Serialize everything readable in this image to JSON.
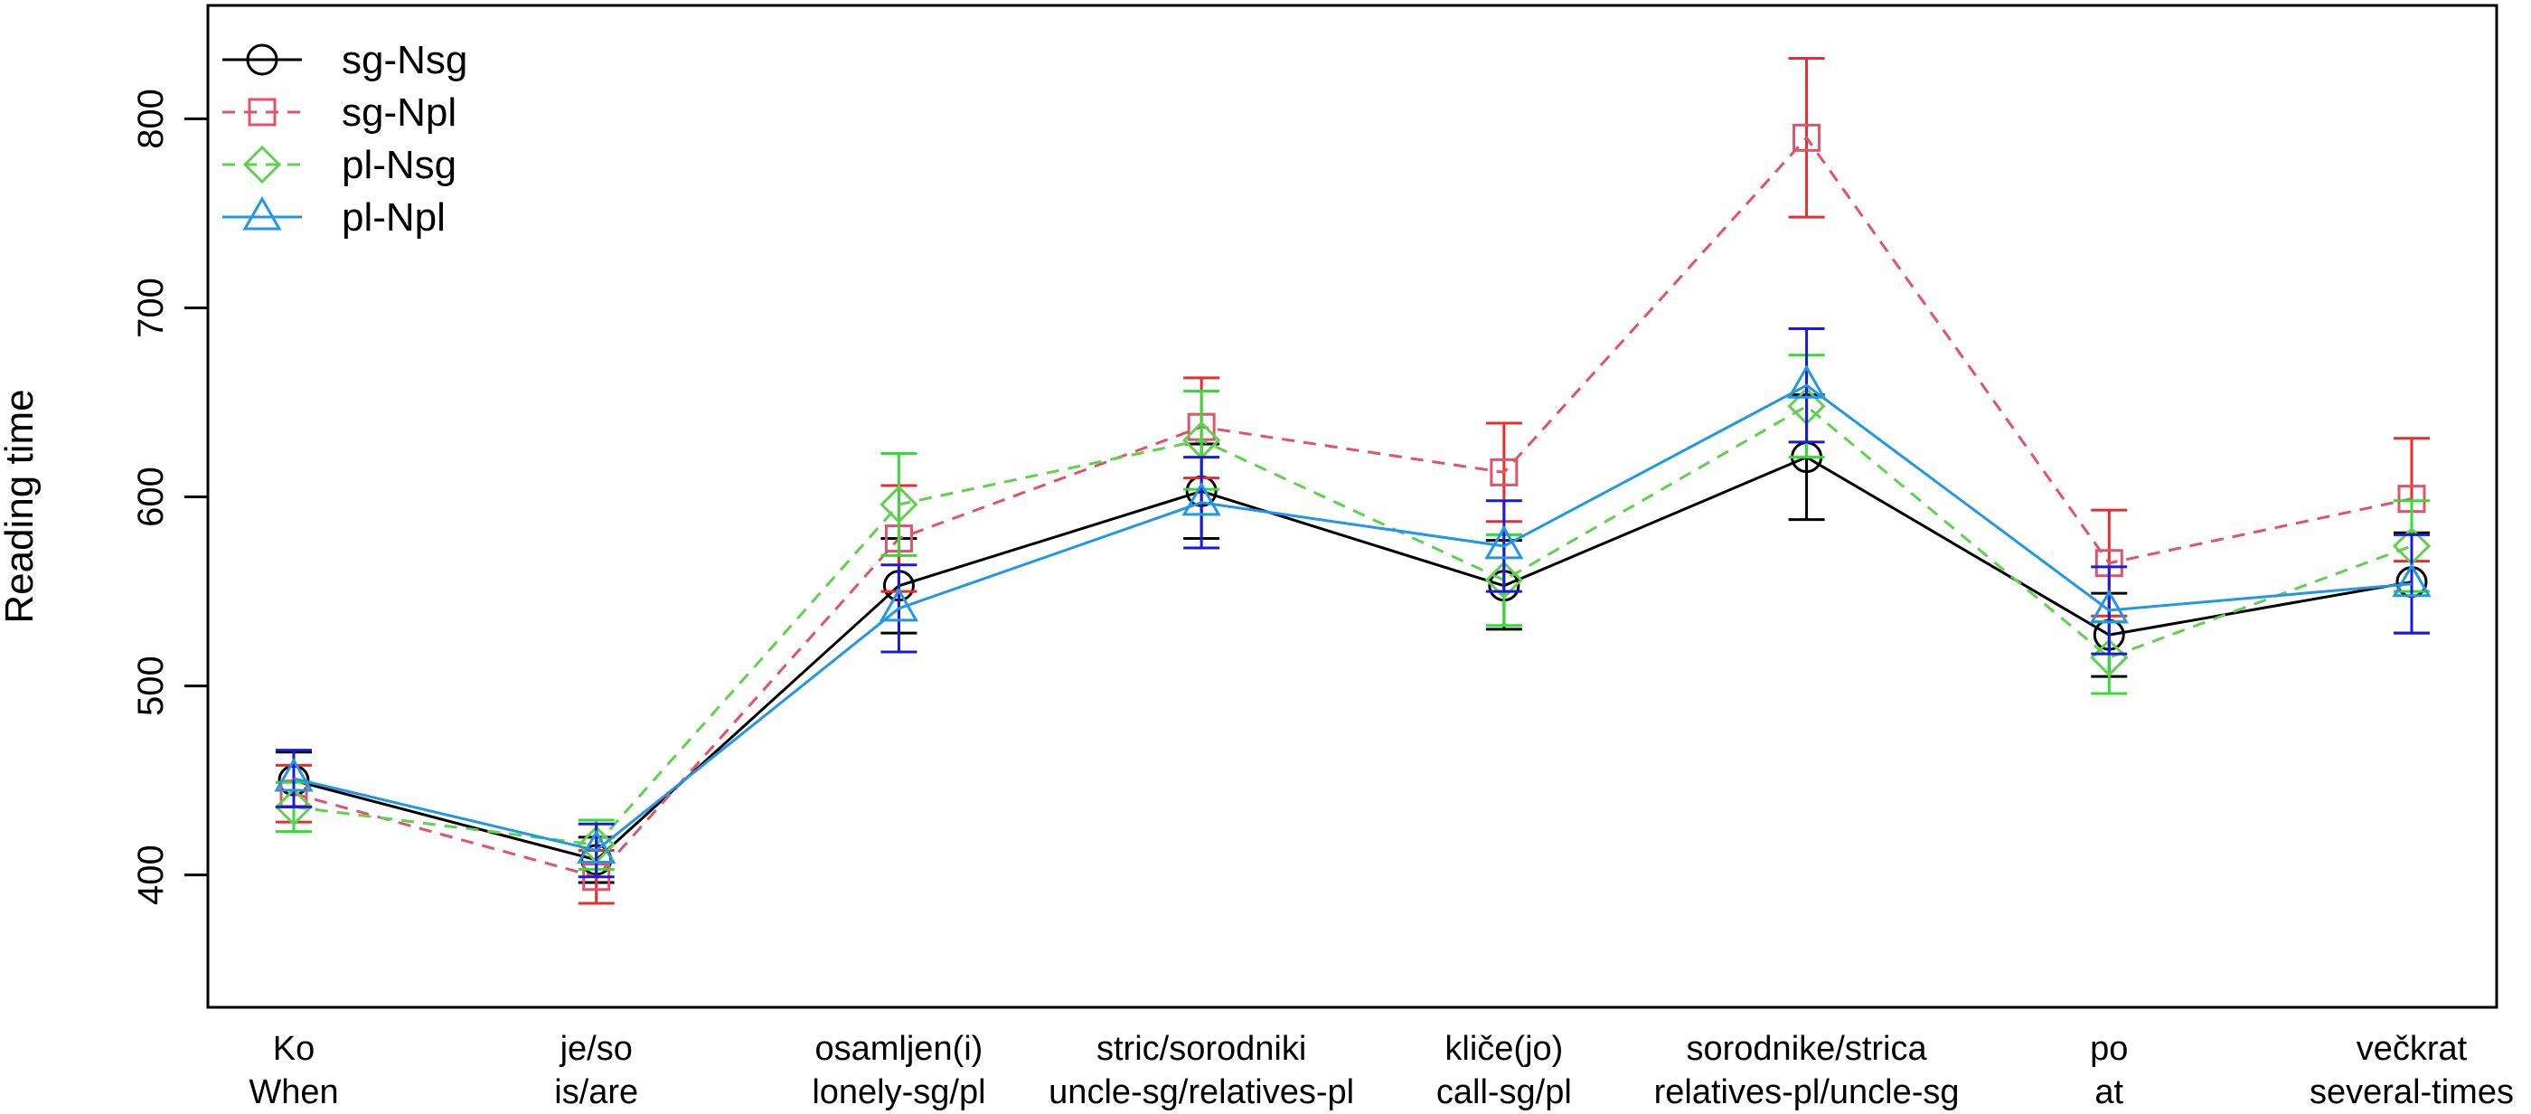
{
  "chart_data": {
    "type": "line",
    "title": "",
    "xlabel": "",
    "ylabel": "Reading time",
    "ylim": [
      330,
      860
    ],
    "yticks": [
      400,
      500,
      600,
      700,
      800
    ],
    "grid": false,
    "legend_position": "top-left",
    "categories": [
      {
        "line1": "Ko",
        "line2": "When"
      },
      {
        "line1": "je/so",
        "line2": "is/are"
      },
      {
        "line1": "osamljen(i)",
        "line2": "lonely-sg/pl"
      },
      {
        "line1": "stric/sorodniki",
        "line2": "uncle-sg/relatives-pl"
      },
      {
        "line1": "kliče(jo)",
        "line2": "call-sg/pl"
      },
      {
        "line1": "sorodnike/strica",
        "line2": "relatives-pl/uncle-sg"
      },
      {
        "line1": "po",
        "line2": "at"
      },
      {
        "line1": "večkrat",
        "line2": "several-times"
      }
    ],
    "series": [
      {
        "name": "sg-Nsg",
        "marker": "circle",
        "dashed": false,
        "line_color": "#000000",
        "error_color": "#000000",
        "values": [
          450,
          408,
          553,
          603,
          553,
          621,
          527,
          555
        ],
        "err_low": [
          436,
          396,
          528,
          578,
          530,
          588,
          505,
          528
        ],
        "err_high": [
          465,
          420,
          578,
          628,
          577,
          654,
          549,
          581
        ]
      },
      {
        "name": "sg-Npl",
        "marker": "square",
        "dashed": true,
        "line_color": "#DF536B",
        "error_color": "#E62E2E",
        "values": [
          443,
          399,
          578,
          637,
          613,
          790,
          565,
          599
        ],
        "err_low": [
          428,
          385,
          550,
          610,
          587,
          748,
          537,
          566
        ],
        "err_high": [
          458,
          413,
          606,
          663,
          639,
          832,
          593,
          631
        ]
      },
      {
        "name": "pl-Nsg",
        "marker": "diamond",
        "dashed": true,
        "line_color": "#61D04F",
        "error_color": "#33DD33",
        "values": [
          436,
          416,
          596,
          630,
          556,
          648,
          515,
          574
        ],
        "err_low": [
          423,
          403,
          569,
          604,
          532,
          621,
          496,
          550
        ],
        "err_high": [
          449,
          429,
          623,
          656,
          580,
          675,
          534,
          598
        ]
      },
      {
        "name": "pl-Npl",
        "marker": "triangle",
        "dashed": false,
        "line_color": "#2297E6",
        "error_color": "#1A1ADD",
        "values": [
          451,
          413,
          541,
          597,
          574,
          659,
          540,
          554
        ],
        "err_low": [
          436,
          399,
          518,
          573,
          550,
          629,
          517,
          528
        ],
        "err_high": [
          466,
          427,
          564,
          621,
          598,
          689,
          563,
          580
        ]
      }
    ]
  }
}
